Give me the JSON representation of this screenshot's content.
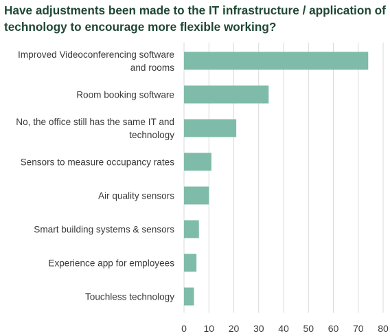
{
  "chart_data": {
    "type": "bar",
    "orientation": "horizontal",
    "title": "Have adjustments been made to the IT infrastructure / application of technology to encourage more flexible working?",
    "categories": [
      [
        "Improved Videoconferencing software",
        "and rooms"
      ],
      [
        "Room booking software"
      ],
      [
        "No, the office still has the same IT and",
        "technology"
      ],
      [
        "Sensors to measure occupancy rates"
      ],
      [
        "Air quality sensors"
      ],
      [
        "Smart building systems & sensors"
      ],
      [
        "Experience app for employees"
      ],
      [
        "Touchless technology"
      ]
    ],
    "values": [
      74,
      34,
      21,
      11,
      10,
      6,
      5,
      4
    ],
    "xlim": [
      0,
      80
    ],
    "xticks": [
      "0",
      "10",
      "20",
      "30",
      "40",
      "50",
      "60",
      "70",
      "80"
    ],
    "grid": true,
    "bar_color": "#7fbba9",
    "grid_color": "#d9d9d9",
    "title_color": "#1f4733"
  }
}
